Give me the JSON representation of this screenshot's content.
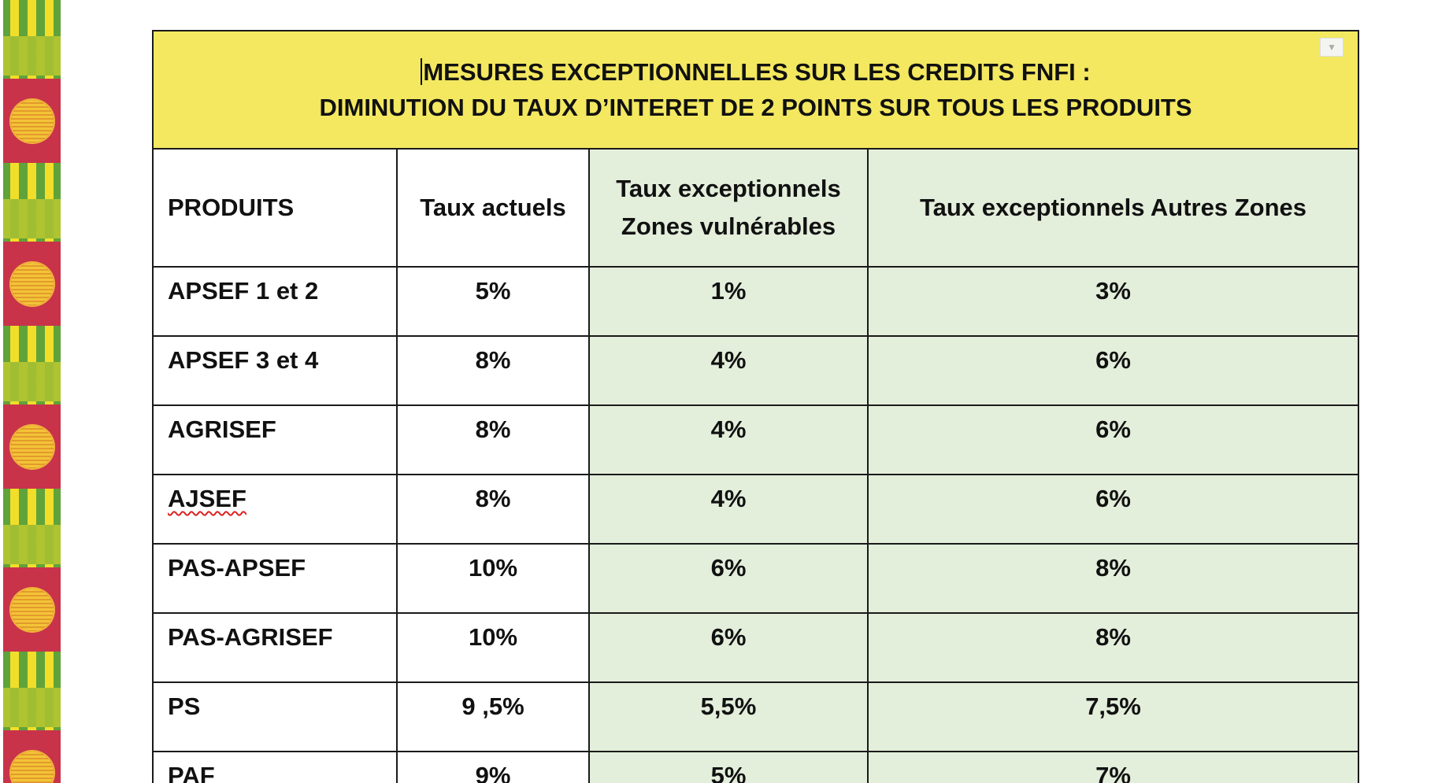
{
  "table": {
    "title_line1": "MESURES EXCEPTIONNELLES SUR LES CREDITS FNFI :",
    "title_line2": "DIMINUTION DU TAUX D’INTERET DE 2 POINTS SUR TOUS LES PRODUITS",
    "headers": {
      "produits": "PRODUITS",
      "taux_actuels": "Taux actuels",
      "zones_vulnerables_line1": "Taux exceptionnels",
      "zones_vulnerables_line2": "Zones vulnérables",
      "autres_zones": "Taux exceptionnels Autres Zones"
    },
    "rows": [
      {
        "produit": "APSEF 1 et 2",
        "actuel": "5%",
        "vulnerable": "1%",
        "autres": "3%"
      },
      {
        "produit": "APSEF 3 et 4",
        "actuel": "8%",
        "vulnerable": "4%",
        "autres": "6%"
      },
      {
        "produit": "AGRISEF",
        "actuel": "8%",
        "vulnerable": "4%",
        "autres": "6%"
      },
      {
        "produit": "AJSEF",
        "actuel": "8%",
        "vulnerable": "4%",
        "autres": "6%"
      },
      {
        "produit": "PAS-APSEF",
        "actuel": "10%",
        "vulnerable": "6%",
        "autres": "8%"
      },
      {
        "produit": "PAS-AGRISEF",
        "actuel": "10%",
        "vulnerable": "6%",
        "autres": "8%"
      },
      {
        "produit": "PS",
        "actuel": "9 ,5%",
        "vulnerable": "5,5%",
        "autres": "7,5%"
      },
      {
        "produit": "PAF",
        "actuel": "9%",
        "vulnerable": "5%",
        "autres": "7%"
      }
    ]
  },
  "colors": {
    "title_background": "#f3e860",
    "green_column_background": "#e3eedb",
    "border": "#1a1a1a",
    "kente_green": "#5fa33a",
    "kente_yellow": "#f1de2a",
    "kente_red": "#c8334a"
  }
}
